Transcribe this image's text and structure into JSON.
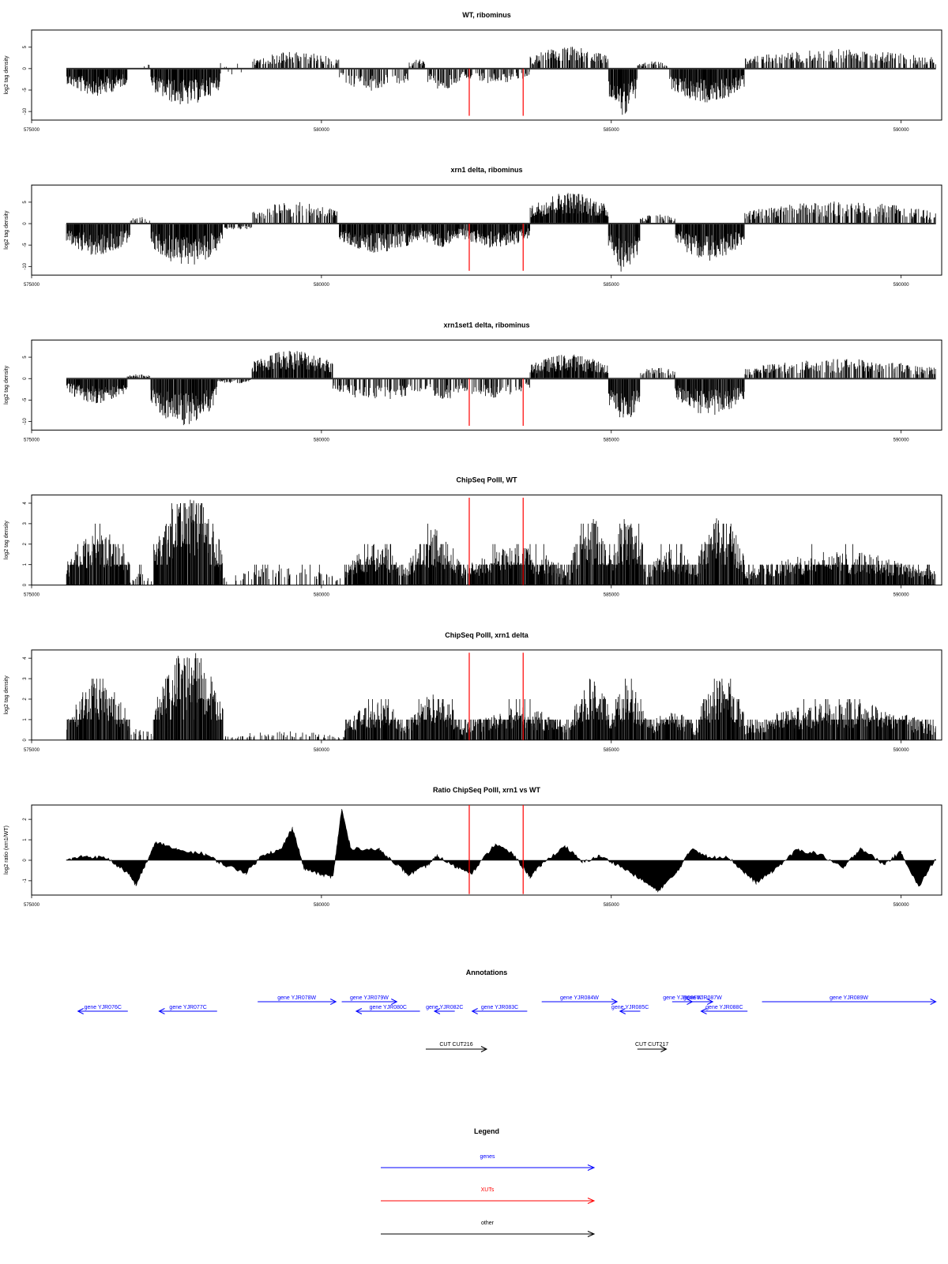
{
  "chart_data": {
    "type": "genome-browser",
    "xlim": [
      575000,
      590700
    ],
    "x_ticks": [
      575000,
      580000,
      585000,
      590000
    ],
    "marker_positions": [
      582550,
      583480
    ],
    "marker_color": "#ff0000",
    "panels": [
      {
        "id": "wt-ribominus",
        "title": "WT, ribominus",
        "ylabel": "log2 tag density",
        "style": "signed",
        "ylim": [
          -12,
          9
        ],
        "y_ticks": [
          -10,
          -5,
          0,
          5
        ],
        "data_start": 575600,
        "data_end": 590600,
        "segments": [
          {
            "x": [
              575600,
              576650
            ],
            "level": -5.5
          },
          {
            "x": [
              576650,
              577050
            ],
            "level": 0
          },
          {
            "x": [
              577050,
              578250
            ],
            "level": -7.5
          },
          {
            "x": [
              578250,
              578800
            ],
            "level": 0
          },
          {
            "x": [
              578800,
              580300
            ],
            "level": 3.5
          },
          {
            "x": [
              580300,
              581500
            ],
            "level": -4.5
          },
          {
            "x": [
              581500,
              581800
            ],
            "level": 2
          },
          {
            "x": [
              581800,
              582400
            ],
            "level": -4.5
          },
          {
            "x": [
              582400,
              583600
            ],
            "level": -3.0
          },
          {
            "x": [
              583600,
              584950
            ],
            "level": 4.5
          },
          {
            "x": [
              584950,
              585450
            ],
            "level": -9.5
          },
          {
            "x": [
              585450,
              586000
            ],
            "level": 1.5
          },
          {
            "x": [
              586000,
              587300
            ],
            "level": -7.0
          },
          {
            "x": [
              587300,
              590600
            ],
            "level": 4.0
          }
        ]
      },
      {
        "id": "xrn1-ribominus",
        "title": "xrn1 delta, ribominus",
        "ylabel": "log2 tag density",
        "style": "signed",
        "ylim": [
          -12,
          9
        ],
        "y_ticks": [
          -10,
          -5,
          0,
          5
        ],
        "data_start": 575600,
        "data_end": 590600,
        "segments": [
          {
            "x": [
              575600,
              576700
            ],
            "level": -6.5
          },
          {
            "x": [
              576700,
              577050
            ],
            "level": 1.5
          },
          {
            "x": [
              577050,
              578300
            ],
            "level": -8.5
          },
          {
            "x": [
              578300,
              578800
            ],
            "level": -1.5
          },
          {
            "x": [
              578800,
              580300
            ],
            "level": 4.5
          },
          {
            "x": [
              580300,
              581700
            ],
            "level": -6.0
          },
          {
            "x": [
              581700,
              582400
            ],
            "level": -5.0
          },
          {
            "x": [
              582400,
              583600
            ],
            "level": -5.0
          },
          {
            "x": [
              583600,
              584950
            ],
            "level": 6.5
          },
          {
            "x": [
              584950,
              585500
            ],
            "level": -10.0
          },
          {
            "x": [
              585500,
              586100
            ],
            "level": 2.0
          },
          {
            "x": [
              586100,
              587300
            ],
            "level": -7.5
          },
          {
            "x": [
              587300,
              590600
            ],
            "level": 4.5
          }
        ]
      },
      {
        "id": "xrn1set1-ribominus",
        "title": "xrn1set1 delta, ribominus",
        "ylabel": "log2 tag density",
        "style": "signed",
        "ylim": [
          -12,
          9
        ],
        "y_ticks": [
          -10,
          -5,
          0,
          5
        ],
        "data_start": 575600,
        "data_end": 590600,
        "segments": [
          {
            "x": [
              575600,
              576650
            ],
            "level": -5.0
          },
          {
            "x": [
              576650,
              577050
            ],
            "level": 1.0
          },
          {
            "x": [
              577050,
              578200
            ],
            "level": -9.5
          },
          {
            "x": [
              578200,
              578800
            ],
            "level": -1.0
          },
          {
            "x": [
              578800,
              580200
            ],
            "level": 6.0
          },
          {
            "x": [
              580200,
              581800
            ],
            "level": -4.5
          },
          {
            "x": [
              581800,
              582400
            ],
            "level": -4.5
          },
          {
            "x": [
              582400,
              583600
            ],
            "level": -4.0
          },
          {
            "x": [
              583600,
              584950
            ],
            "level": 5.0
          },
          {
            "x": [
              584950,
              585500
            ],
            "level": -9.0
          },
          {
            "x": [
              585500,
              586100
            ],
            "level": 2.5
          },
          {
            "x": [
              586100,
              587300
            ],
            "level": -7.5
          },
          {
            "x": [
              587300,
              590600
            ],
            "level": 4.0
          }
        ]
      },
      {
        "id": "chipseq-wt",
        "title": "ChipSeq PolII, WT",
        "ylabel": "log2 tag density",
        "style": "positive",
        "ylim": [
          0,
          4.4
        ],
        "y_ticks": [
          0,
          1,
          2,
          3,
          4
        ],
        "data_start": 575600,
        "data_end": 590600,
        "segments": [
          {
            "x": [
              575600,
              576700
            ],
            "level": 2.5
          },
          {
            "x": [
              576700,
              577100
            ],
            "level": 0.6
          },
          {
            "x": [
              577100,
              578300
            ],
            "level": 4.1
          },
          {
            "x": [
              578300,
              580400
            ],
            "level": 0.8
          },
          {
            "x": [
              580400,
              581500
            ],
            "level": 1.8
          },
          {
            "x": [
              581500,
              582400
            ],
            "level": 2.5
          },
          {
            "x": [
              582400,
              584300
            ],
            "level": 1.7
          },
          {
            "x": [
              584300,
              585000
            ],
            "level": 3.0
          },
          {
            "x": [
              585000,
              585600
            ],
            "level": 3.1
          },
          {
            "x": [
              585600,
              586500
            ],
            "level": 1.6
          },
          {
            "x": [
              586500,
              587300
            ],
            "level": 3.1
          },
          {
            "x": [
              587300,
              590600
            ],
            "level": 1.5
          }
        ]
      },
      {
        "id": "chipseq-xrn1",
        "title": "ChipSeq PolII, xrn1 delta",
        "ylabel": "log2 tag density",
        "style": "positive",
        "ylim": [
          0,
          4.4
        ],
        "y_ticks": [
          0,
          1,
          2,
          3,
          4
        ],
        "data_start": 575600,
        "data_end": 590600,
        "segments": [
          {
            "x": [
              575600,
              576700
            ],
            "level": 2.6
          },
          {
            "x": [
              576700,
              577100
            ],
            "level": 0.6
          },
          {
            "x": [
              577100,
              578300
            ],
            "level": 4.0
          },
          {
            "x": [
              578300,
              580400
            ],
            "level": 0.4
          },
          {
            "x": [
              580400,
              581500
            ],
            "level": 1.7
          },
          {
            "x": [
              581500,
              582400
            ],
            "level": 2.1
          },
          {
            "x": [
              582400,
              584300
            ],
            "level": 1.5
          },
          {
            "x": [
              584300,
              585000
            ],
            "level": 2.8
          },
          {
            "x": [
              585000,
              585600
            ],
            "level": 2.6
          },
          {
            "x": [
              585600,
              586500
            ],
            "level": 1.3
          },
          {
            "x": [
              586500,
              587300
            ],
            "level": 2.9
          },
          {
            "x": [
              587300,
              590600
            ],
            "level": 1.7
          }
        ]
      },
      {
        "id": "ratio",
        "title": "Ratio ChipSeq PolII, xrn1 vs WT",
        "ylabel": "log2 ratio (xrn1/WT)",
        "style": "area",
        "ylim": [
          -1.7,
          2.7
        ],
        "y_ticks": [
          -1,
          0,
          1,
          2
        ],
        "data_start": 575600,
        "data_end": 590600,
        "profile": [
          [
            575600,
            0.0
          ],
          [
            575900,
            0.2
          ],
          [
            576300,
            0.1
          ],
          [
            576650,
            -0.6
          ],
          [
            576800,
            -1.2
          ],
          [
            576950,
            -0.3
          ],
          [
            577150,
            0.9
          ],
          [
            577500,
            0.5
          ],
          [
            578000,
            0.3
          ],
          [
            578300,
            -0.2
          ],
          [
            578700,
            -0.6
          ],
          [
            579000,
            0.3
          ],
          [
            579300,
            0.5
          ],
          [
            579500,
            1.6
          ],
          [
            579700,
            -0.4
          ],
          [
            580000,
            -0.7
          ],
          [
            580200,
            -0.8
          ],
          [
            580350,
            2.5
          ],
          [
            580500,
            0.6
          ],
          [
            581000,
            0.5
          ],
          [
            581300,
            -0.2
          ],
          [
            581500,
            -0.7
          ],
          [
            581800,
            -0.3
          ],
          [
            582000,
            0.2
          ],
          [
            582300,
            -0.3
          ],
          [
            582600,
            -0.6
          ],
          [
            583000,
            0.8
          ],
          [
            583300,
            0.3
          ],
          [
            583600,
            -0.8
          ],
          [
            583800,
            -0.2
          ],
          [
            584200,
            0.7
          ],
          [
            584500,
            -0.1
          ],
          [
            584800,
            0.2
          ],
          [
            585100,
            -0.2
          ],
          [
            585500,
            -0.9
          ],
          [
            585800,
            -1.5
          ],
          [
            586100,
            -0.7
          ],
          [
            586400,
            0.6
          ],
          [
            586700,
            0.1
          ],
          [
            587000,
            0.2
          ],
          [
            587300,
            -0.6
          ],
          [
            587500,
            -1.1
          ],
          [
            587800,
            -0.5
          ],
          [
            588200,
            0.5
          ],
          [
            588600,
            0.3
          ],
          [
            589000,
            -0.4
          ],
          [
            589300,
            0.6
          ],
          [
            589700,
            -0.2
          ],
          [
            590000,
            0.4
          ],
          [
            590300,
            -1.3
          ],
          [
            590600,
            0.1
          ]
        ]
      }
    ],
    "annotations": {
      "title": "Annotations",
      "genes": [
        {
          "label": "gene YJR076C",
          "start": 575800,
          "end": 576660,
          "strand": "-",
          "row": 1
        },
        {
          "label": "gene YJR077C",
          "start": 577200,
          "end": 578200,
          "strand": "-",
          "row": 1
        },
        {
          "label": "gene YJR078W",
          "start": 578900,
          "end": 580250,
          "strand": "+",
          "row": 0
        },
        {
          "label": "gene YJR079W",
          "start": 580350,
          "end": 581300,
          "strand": "+",
          "row": 0
        },
        {
          "label": "gene YJR080C",
          "start": 580600,
          "end": 581700,
          "strand": "-",
          "row": 1
        },
        {
          "label": "gene YJR082C",
          "start": 581950,
          "end": 582300,
          "strand": "-",
          "row": 1
        },
        {
          "label": "gene YJR083C",
          "start": 582600,
          "end": 583550,
          "strand": "-",
          "row": 1
        },
        {
          "label": "gene YJR084W",
          "start": 583800,
          "end": 585100,
          "strand": "+",
          "row": 0
        },
        {
          "label": "gene YJR085C",
          "start": 585150,
          "end": 585500,
          "strand": "-",
          "row": 1
        },
        {
          "label": "gene YJR086W",
          "start": 586050,
          "end": 586400,
          "strand": "+",
          "row": 0
        },
        {
          "label": "gene YJR087W",
          "start": 586400,
          "end": 586750,
          "strand": "+",
          "row": 0
        },
        {
          "label": "gene YJR088C",
          "start": 586550,
          "end": 587350,
          "strand": "-",
          "row": 1
        },
        {
          "label": "gene YJR089W",
          "start": 587600,
          "end": 590600,
          "strand": "+",
          "row": 0
        }
      ],
      "other": [
        {
          "label": "CUT CUT216",
          "start": 581800,
          "end": 582850,
          "strand": "+"
        },
        {
          "label": "CUT CUT217",
          "start": 585450,
          "end": 585950,
          "strand": "+"
        }
      ],
      "gene_color": "#0000ff",
      "other_color": "#000000"
    },
    "legend": {
      "title": "Legend",
      "items": [
        {
          "label": "genes",
          "color": "#0000ff"
        },
        {
          "label": "XUTs",
          "color": "#ff0000"
        },
        {
          "label": "other",
          "color": "#000000"
        }
      ]
    }
  }
}
